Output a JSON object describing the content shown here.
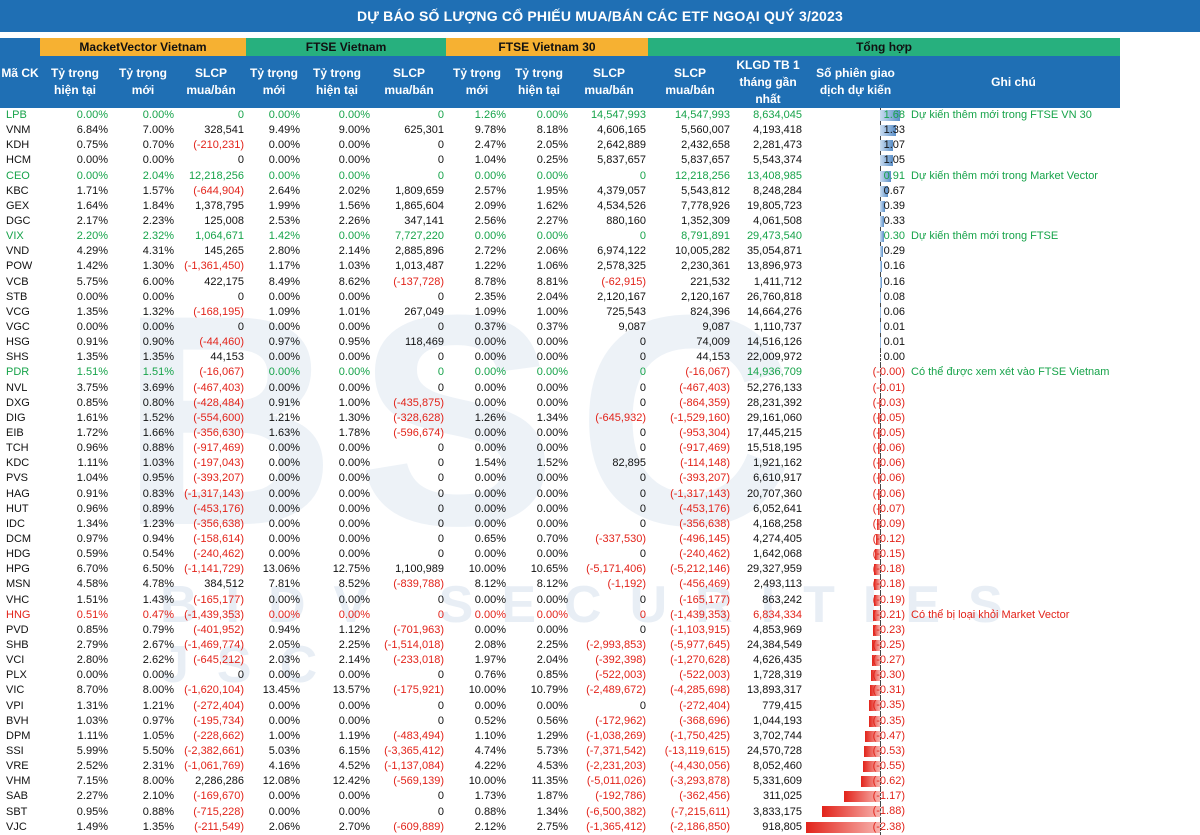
{
  "title": "DỰ BÁO SỐ LƯỢNG CỔ PHIẾU MUA/BÁN CÁC ETF NGOẠI QUÝ 3/2023",
  "watermark": {
    "big": "BSC",
    "small": "BIDV SECURITIES JSC"
  },
  "groups": {
    "mv": "MacketVector Vietnam",
    "ftse": "FTSE Vietnam",
    "ftse30": "FTSE Vietnam 30",
    "total": "Tổng hợp"
  },
  "headers": {
    "ma": "Mã CK",
    "mv_cur": "Tỷ trọng hiện tại",
    "mv_new": "Tỷ trọng mới",
    "mv_slcp": "SLCP mua/bán",
    "ft_new": "Tỷ trọng mới",
    "ft_cur": "Tỷ trọng hiện tại",
    "ft_slcp": "SLCP mua/bán",
    "f30_new": "Tỷ trọng mới",
    "f30_cur": "Tỷ trọng hiện tại",
    "f30_slcp": "SLCP mua/bán",
    "tot_slcp": "SLCP mua/bán",
    "klgd": "KLGD TB 1 tháng gần nhất",
    "sessions": "Số phiên giao dịch dự kiến",
    "note": "Ghi chú"
  },
  "colors": {
    "blue": "#1f6fb4",
    "orange": "#f6b132",
    "green": "#27b07e",
    "text_green": "#17a34a",
    "text_red": "#e2231a"
  },
  "rows": [
    {
      "c": "LPB",
      "s": "green",
      "v": [
        "0.00%",
        "0.00%",
        "0",
        "0.00%",
        "0.00%",
        "0",
        "1.26%",
        "0.00%",
        "14,547,993",
        "14,547,993",
        "8,634,045"
      ],
      "p": "1.68",
      "n": 1.68,
      "note": "Dự kiến thêm mới trong FTSE VN 30"
    },
    {
      "c": "VNM",
      "v": [
        "6.84%",
        "7.00%",
        "328,541",
        "9.49%",
        "9.00%",
        "625,301",
        "9.78%",
        "8.18%",
        "4,606,165",
        "5,560,007",
        "4,193,418"
      ],
      "p": "1.33",
      "n": 1.33,
      "note": ""
    },
    {
      "c": "KDH",
      "v": [
        "0.75%",
        "0.70%",
        "(-210,231)",
        "0.00%",
        "0.00%",
        "0",
        "2.47%",
        "2.05%",
        "2,642,889",
        "2,432,658",
        "2,281,473"
      ],
      "p": "1.07",
      "n": 1.07,
      "note": ""
    },
    {
      "c": "HCM",
      "v": [
        "0.00%",
        "0.00%",
        "0",
        "0.00%",
        "0.00%",
        "0",
        "1.04%",
        "0.25%",
        "5,837,657",
        "5,837,657",
        "5,543,374"
      ],
      "p": "1.05",
      "n": 1.05,
      "note": ""
    },
    {
      "c": "CEO",
      "s": "green",
      "v": [
        "0.00%",
        "2.04%",
        "12,218,256",
        "0.00%",
        "0.00%",
        "0",
        "0.00%",
        "0.00%",
        "0",
        "12,218,256",
        "13,408,985"
      ],
      "p": "0.91",
      "n": 0.91,
      "note": "Dự kiến thêm mới trong Market Vector"
    },
    {
      "c": "KBC",
      "v": [
        "1.71%",
        "1.57%",
        "(-644,904)",
        "2.64%",
        "2.02%",
        "1,809,659",
        "2.57%",
        "1.95%",
        "4,379,057",
        "5,543,812",
        "8,248,284"
      ],
      "p": "0.67",
      "n": 0.67,
      "note": ""
    },
    {
      "c": "GEX",
      "v": [
        "1.64%",
        "1.84%",
        "1,378,795",
        "1.99%",
        "1.56%",
        "1,865,604",
        "2.09%",
        "1.62%",
        "4,534,526",
        "7,778,926",
        "19,805,723"
      ],
      "p": "0.39",
      "n": 0.39,
      "note": ""
    },
    {
      "c": "DGC",
      "v": [
        "2.17%",
        "2.23%",
        "125,008",
        "2.53%",
        "2.26%",
        "347,141",
        "2.56%",
        "2.27%",
        "880,160",
        "1,352,309",
        "4,061,508"
      ],
      "p": "0.33",
      "n": 0.33,
      "note": ""
    },
    {
      "c": "VIX",
      "s": "green",
      "v": [
        "2.20%",
        "2.32%",
        "1,064,671",
        "1.42%",
        "0.00%",
        "7,727,220",
        "0.00%",
        "0.00%",
        "0",
        "8,791,891",
        "29,473,540"
      ],
      "p": "0.30",
      "n": 0.3,
      "note": "Dự kiến thêm mới trong FTSE"
    },
    {
      "c": "VND",
      "v": [
        "4.29%",
        "4.31%",
        "145,265",
        "2.80%",
        "2.14%",
        "2,885,896",
        "2.72%",
        "2.06%",
        "6,974,122",
        "10,005,282",
        "35,054,871"
      ],
      "p": "0.29",
      "n": 0.29,
      "note": ""
    },
    {
      "c": "POW",
      "v": [
        "1.42%",
        "1.30%",
        "(-1,361,450)",
        "1.17%",
        "1.03%",
        "1,013,487",
        "1.22%",
        "1.06%",
        "2,578,325",
        "2,230,361",
        "13,896,973"
      ],
      "p": "0.16",
      "n": 0.16,
      "note": ""
    },
    {
      "c": "VCB",
      "v": [
        "5.75%",
        "6.00%",
        "422,175",
        "8.49%",
        "8.62%",
        "(-137,728)",
        "8.78%",
        "8.81%",
        "(-62,915)",
        "221,532",
        "1,411,712"
      ],
      "p": "0.16",
      "n": 0.16,
      "note": ""
    },
    {
      "c": "STB",
      "v": [
        "0.00%",
        "0.00%",
        "0",
        "0.00%",
        "0.00%",
        "0",
        "2.35%",
        "2.04%",
        "2,120,167",
        "2,120,167",
        "26,760,818"
      ],
      "p": "0.08",
      "n": 0.08,
      "note": ""
    },
    {
      "c": "VCG",
      "v": [
        "1.35%",
        "1.32%",
        "(-168,195)",
        "1.09%",
        "1.01%",
        "267,049",
        "1.09%",
        "1.00%",
        "725,543",
        "824,396",
        "14,664,276"
      ],
      "p": "0.06",
      "n": 0.06,
      "note": ""
    },
    {
      "c": "VGC",
      "v": [
        "0.00%",
        "0.00%",
        "0",
        "0.00%",
        "0.00%",
        "0",
        "0.37%",
        "0.37%",
        "9,087",
        "9,087",
        "1,110,737"
      ],
      "p": "0.01",
      "n": 0.01,
      "note": ""
    },
    {
      "c": "HSG",
      "v": [
        "0.91%",
        "0.90%",
        "(-44,460)",
        "0.97%",
        "0.95%",
        "118,469",
        "0.00%",
        "0.00%",
        "0",
        "74,009",
        "14,516,126"
      ],
      "p": "0.01",
      "n": 0.01,
      "note": ""
    },
    {
      "c": "SHS",
      "v": [
        "1.35%",
        "1.35%",
        "44,153",
        "0.00%",
        "0.00%",
        "0",
        "0.00%",
        "0.00%",
        "0",
        "44,153",
        "22,009,972"
      ],
      "p": "0.00",
      "n": 0.0,
      "note": ""
    },
    {
      "c": "PDR",
      "s": "green",
      "v": [
        "1.51%",
        "1.51%",
        "(-16,067)",
        "0.00%",
        "0.00%",
        "0",
        "0.00%",
        "0.00%",
        "0",
        "(-16,067)",
        "14,936,709"
      ],
      "p": "(-0.00)",
      "n": 0.0,
      "note": "Có thể được xem xét vào FTSE Vietnam"
    },
    {
      "c": "NVL",
      "v": [
        "3.75%",
        "3.69%",
        "(-467,403)",
        "0.00%",
        "0.00%",
        "0",
        "0.00%",
        "0.00%",
        "0",
        "(-467,403)",
        "52,276,133"
      ],
      "p": "(-0.01)",
      "n": -0.01,
      "note": ""
    },
    {
      "c": "DXG",
      "v": [
        "0.85%",
        "0.80%",
        "(-428,484)",
        "0.91%",
        "1.00%",
        "(-435,875)",
        "0.00%",
        "0.00%",
        "0",
        "(-864,359)",
        "28,231,392"
      ],
      "p": "(-0.03)",
      "n": -0.03,
      "note": ""
    },
    {
      "c": "DIG",
      "v": [
        "1.61%",
        "1.52%",
        "(-554,600)",
        "1.21%",
        "1.30%",
        "(-328,628)",
        "1.26%",
        "1.34%",
        "(-645,932)",
        "(-1,529,160)",
        "29,161,060"
      ],
      "p": "(-0.05)",
      "n": -0.05,
      "note": ""
    },
    {
      "c": "EIB",
      "v": [
        "1.72%",
        "1.66%",
        "(-356,630)",
        "1.63%",
        "1.78%",
        "(-596,674)",
        "0.00%",
        "0.00%",
        "0",
        "(-953,304)",
        "17,445,215"
      ],
      "p": "(-0.05)",
      "n": -0.05,
      "note": ""
    },
    {
      "c": "TCH",
      "v": [
        "0.96%",
        "0.88%",
        "(-917,469)",
        "0.00%",
        "0.00%",
        "0",
        "0.00%",
        "0.00%",
        "0",
        "(-917,469)",
        "15,518,195"
      ],
      "p": "(-0.06)",
      "n": -0.06,
      "note": ""
    },
    {
      "c": "KDC",
      "v": [
        "1.11%",
        "1.03%",
        "(-197,043)",
        "0.00%",
        "0.00%",
        "0",
        "1.54%",
        "1.52%",
        "82,895",
        "(-114,148)",
        "1,921,162"
      ],
      "p": "(-0.06)",
      "n": -0.06,
      "note": ""
    },
    {
      "c": "PVS",
      "v": [
        "1.04%",
        "0.95%",
        "(-393,207)",
        "0.00%",
        "0.00%",
        "0",
        "0.00%",
        "0.00%",
        "0",
        "(-393,207)",
        "6,610,917"
      ],
      "p": "(-0.06)",
      "n": -0.06,
      "note": ""
    },
    {
      "c": "HAG",
      "v": [
        "0.91%",
        "0.83%",
        "(-1,317,143)",
        "0.00%",
        "0.00%",
        "0",
        "0.00%",
        "0.00%",
        "0",
        "(-1,317,143)",
        "20,707,360"
      ],
      "p": "(-0.06)",
      "n": -0.06,
      "note": ""
    },
    {
      "c": "HUT",
      "v": [
        "0.96%",
        "0.89%",
        "(-453,176)",
        "0.00%",
        "0.00%",
        "0",
        "0.00%",
        "0.00%",
        "0",
        "(-453,176)",
        "6,052,641"
      ],
      "p": "(-0.07)",
      "n": -0.07,
      "note": ""
    },
    {
      "c": "IDC",
      "v": [
        "1.34%",
        "1.23%",
        "(-356,638)",
        "0.00%",
        "0.00%",
        "0",
        "0.00%",
        "0.00%",
        "0",
        "(-356,638)",
        "4,168,258"
      ],
      "p": "(-0.09)",
      "n": -0.09,
      "note": ""
    },
    {
      "c": "DCM",
      "v": [
        "0.97%",
        "0.94%",
        "(-158,614)",
        "0.00%",
        "0.00%",
        "0",
        "0.65%",
        "0.70%",
        "(-337,530)",
        "(-496,145)",
        "4,274,405"
      ],
      "p": "(-0.12)",
      "n": -0.12,
      "note": ""
    },
    {
      "c": "HDG",
      "v": [
        "0.59%",
        "0.54%",
        "(-240,462)",
        "0.00%",
        "0.00%",
        "0",
        "0.00%",
        "0.00%",
        "0",
        "(-240,462)",
        "1,642,068"
      ],
      "p": "(-0.15)",
      "n": -0.15,
      "note": ""
    },
    {
      "c": "HPG",
      "v": [
        "6.70%",
        "6.50%",
        "(-1,141,729)",
        "13.06%",
        "12.75%",
        "1,100,989",
        "10.00%",
        "10.65%",
        "(-5,171,406)",
        "(-5,212,146)",
        "29,327,959"
      ],
      "p": "(-0.18)",
      "n": -0.18,
      "note": ""
    },
    {
      "c": "MSN",
      "v": [
        "4.58%",
        "4.78%",
        "384,512",
        "7.81%",
        "8.52%",
        "(-839,788)",
        "8.12%",
        "8.12%",
        "(-1,192)",
        "(-456,469)",
        "2,493,113"
      ],
      "p": "(-0.18)",
      "n": -0.18,
      "note": ""
    },
    {
      "c": "VHC",
      "v": [
        "1.51%",
        "1.43%",
        "(-165,177)",
        "0.00%",
        "0.00%",
        "0",
        "0.00%",
        "0.00%",
        "0",
        "(-165,177)",
        "863,242"
      ],
      "p": "(-0.19)",
      "n": -0.19,
      "note": ""
    },
    {
      "c": "HNG",
      "s": "red",
      "v": [
        "0.51%",
        "0.47%",
        "(-1,439,353)",
        "0.00%",
        "0.00%",
        "0",
        "0.00%",
        "0.00%",
        "0",
        "(-1,439,353)",
        "6,834,334"
      ],
      "p": "(-0.21)",
      "n": -0.21,
      "note": "Có thể bị loại khỏi Market Vector"
    },
    {
      "c": "PVD",
      "v": [
        "0.85%",
        "0.79%",
        "(-401,952)",
        "0.94%",
        "1.12%",
        "(-701,963)",
        "0.00%",
        "0.00%",
        "0",
        "(-1,103,915)",
        "4,853,969"
      ],
      "p": "(-0.23)",
      "n": -0.23,
      "note": ""
    },
    {
      "c": "SHB",
      "v": [
        "2.79%",
        "2.67%",
        "(-1,469,774)",
        "2.05%",
        "2.25%",
        "(-1,514,018)",
        "2.08%",
        "2.25%",
        "(-2,993,853)",
        "(-5,977,645)",
        "24,384,549"
      ],
      "p": "(-0.25)",
      "n": -0.25,
      "note": ""
    },
    {
      "c": "VCI",
      "v": [
        "2.80%",
        "2.62%",
        "(-645,212)",
        "2.03%",
        "2.14%",
        "(-233,018)",
        "1.97%",
        "2.04%",
        "(-392,398)",
        "(-1,270,628)",
        "4,626,435"
      ],
      "p": "(-0.27)",
      "n": -0.27,
      "note": ""
    },
    {
      "c": "PLX",
      "v": [
        "0.00%",
        "0.00%",
        "0",
        "0.00%",
        "0.00%",
        "0",
        "0.76%",
        "0.85%",
        "(-522,003)",
        "(-522,003)",
        "1,728,319"
      ],
      "p": "(-0.30)",
      "n": -0.3,
      "note": ""
    },
    {
      "c": "VIC",
      "v": [
        "8.70%",
        "8.00%",
        "(-1,620,104)",
        "13.45%",
        "13.57%",
        "(-175,921)",
        "10.00%",
        "10.79%",
        "(-2,489,672)",
        "(-4,285,698)",
        "13,893,317"
      ],
      "p": "(-0.31)",
      "n": -0.31,
      "note": ""
    },
    {
      "c": "VPI",
      "v": [
        "1.31%",
        "1.21%",
        "(-272,404)",
        "0.00%",
        "0.00%",
        "0",
        "0.00%",
        "0.00%",
        "0",
        "(-272,404)",
        "779,415"
      ],
      "p": "(-0.35)",
      "n": -0.35,
      "note": ""
    },
    {
      "c": "BVH",
      "v": [
        "1.03%",
        "0.97%",
        "(-195,734)",
        "0.00%",
        "0.00%",
        "0",
        "0.52%",
        "0.56%",
        "(-172,962)",
        "(-368,696)",
        "1,044,193"
      ],
      "p": "(-0.35)",
      "n": -0.35,
      "note": ""
    },
    {
      "c": "DPM",
      "v": [
        "1.11%",
        "1.05%",
        "(-228,662)",
        "1.00%",
        "1.19%",
        "(-483,494)",
        "1.10%",
        "1.29%",
        "(-1,038,269)",
        "(-1,750,425)",
        "3,702,744"
      ],
      "p": "(-0.47)",
      "n": -0.47,
      "note": ""
    },
    {
      "c": "SSI",
      "v": [
        "5.99%",
        "5.50%",
        "(-2,382,661)",
        "5.03%",
        "6.15%",
        "(-3,365,412)",
        "4.74%",
        "5.73%",
        "(-7,371,542)",
        "(-13,119,615)",
        "24,570,728"
      ],
      "p": "(-0.53)",
      "n": -0.53,
      "note": ""
    },
    {
      "c": "VRE",
      "v": [
        "2.52%",
        "2.31%",
        "(-1,061,769)",
        "4.16%",
        "4.52%",
        "(-1,137,084)",
        "4.22%",
        "4.53%",
        "(-2,231,203)",
        "(-4,430,056)",
        "8,052,460"
      ],
      "p": "(-0.55)",
      "n": -0.55,
      "note": ""
    },
    {
      "c": "VHM",
      "v": [
        "7.15%",
        "8.00%",
        "2,286,286",
        "12.08%",
        "12.42%",
        "(-569,139)",
        "10.00%",
        "11.35%",
        "(-5,011,026)",
        "(-3,293,878)",
        "5,331,609"
      ],
      "p": "(-0.62)",
      "n": -0.62,
      "note": ""
    },
    {
      "c": "SAB",
      "v": [
        "2.27%",
        "2.10%",
        "(-169,670)",
        "0.00%",
        "0.00%",
        "0",
        "1.73%",
        "1.87%",
        "(-192,786)",
        "(-362,456)",
        "311,025"
      ],
      "p": "(-1.17)",
      "n": -1.17,
      "note": ""
    },
    {
      "c": "SBT",
      "v": [
        "0.95%",
        "0.88%",
        "(-715,228)",
        "0.00%",
        "0.00%",
        "0",
        "0.88%",
        "1.34%",
        "(-6,500,382)",
        "(-7,215,611)",
        "3,833,175"
      ],
      "p": "(-1.88)",
      "n": -1.88,
      "note": ""
    },
    {
      "c": "VJC",
      "v": [
        "1.49%",
        "1.35%",
        "(-211,549)",
        "2.06%",
        "2.70%",
        "(-609,889)",
        "2.12%",
        "2.75%",
        "(-1,365,412)",
        "(-2,186,850)",
        "918,805"
      ],
      "p": "(-2.38)",
      "n": -2.38,
      "note": ""
    }
  ]
}
